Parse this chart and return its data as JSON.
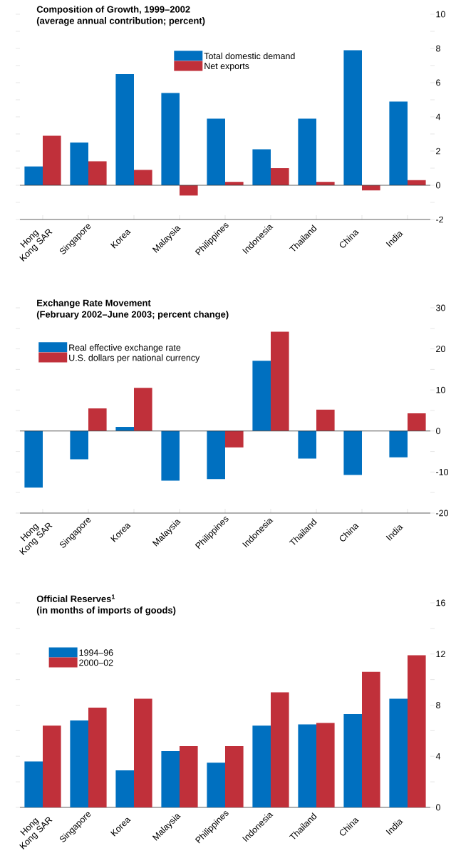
{
  "chart_data": [
    {
      "type": "bar",
      "title": "Composition of Growth, 1999–2002",
      "subtitle": "(average annual contribution; percent)",
      "categories": [
        "Hong Kong SAR",
        "Singapore",
        "Korea",
        "Malaysia",
        "Philippines",
        "Indonesia",
        "Thailand",
        "China",
        "India"
      ],
      "series": [
        {
          "name": "Total domestic demand",
          "color": "#0070c0",
          "values": [
            1.1,
            2.5,
            6.5,
            5.4,
            3.9,
            2.1,
            3.9,
            7.9,
            4.9
          ]
        },
        {
          "name": "Net exports",
          "color": "#c0303a",
          "values": [
            2.9,
            1.4,
            0.9,
            -0.6,
            0.2,
            1.0,
            0.2,
            -0.3,
            0.3
          ]
        }
      ],
      "ylim": [
        -2,
        10
      ],
      "yticks": [
        -2,
        {
          "value": -1,
          "label": null
        },
        0,
        {
          "value": 1,
          "label": null
        },
        2,
        {
          "value": 3,
          "label": null
        },
        4,
        {
          "value": 5,
          "label": null
        },
        6,
        {
          "value": 7,
          "label": null
        },
        8,
        {
          "value": 9,
          "label": null
        },
        10
      ],
      "legend": "top"
    },
    {
      "type": "bar",
      "title": "Exchange Rate Movement",
      "subtitle": "(February 2002–June 2003; percent change)",
      "categories": [
        "Hong Kong SAR",
        "Singapore",
        "Korea",
        "Malaysia",
        "Philippines",
        "Indonesia",
        "Thailand",
        "China",
        "India"
      ],
      "series": [
        {
          "name": "Real effective exchange rate",
          "color": "#0070c0",
          "values": [
            -13.8,
            -6.9,
            1.0,
            -12.1,
            -11.7,
            17.1,
            -6.7,
            -10.7,
            -6.4
          ]
        },
        {
          "name": "U.S. dollars per national currency",
          "color": "#c0303a",
          "values": [
            0,
            5.5,
            10.5,
            0,
            -4.0,
            24.2,
            5.2,
            0,
            4.3
          ]
        }
      ],
      "ylim": [
        -20,
        30
      ],
      "yticks": [
        -20,
        {
          "value": -15,
          "label": null
        },
        -10,
        {
          "value": -5,
          "label": null
        },
        0,
        {
          "value": 5,
          "label": null
        },
        10,
        {
          "value": 15,
          "label": null
        },
        20,
        {
          "value": 25,
          "label": null
        },
        30
      ],
      "legend": "top left"
    },
    {
      "type": "bar",
      "title": "Official Reserves$^{1}$",
      "subtitle": "(in months of imports of goods)",
      "categories": [
        "Hong Kong SAR",
        "Singapore",
        "Korea",
        "Malaysia",
        "Philippines",
        "Indonesia",
        "Thailand",
        "China",
        "India"
      ],
      "series": [
        {
          "name": "1994–96",
          "color": "#0070c0",
          "values": [
            3.6,
            6.8,
            2.9,
            4.4,
            3.5,
            6.4,
            6.5,
            7.3,
            8.5
          ]
        },
        {
          "name": "2000–02",
          "color": "#c0303a",
          "values": [
            6.4,
            7.8,
            8.5,
            4.8,
            4.8,
            9.0,
            6.6,
            10.6,
            11.9
          ]
        }
      ],
      "ylim": [
        0,
        16
      ],
      "yticks": [
        0,
        {
          "value": 2,
          "label": null
        },
        4,
        {
          "value": 6,
          "label": null
        },
        8,
        {
          "value": 10,
          "label": null
        },
        12,
        {
          "value": 14,
          "label": null
        },
        16
      ],
      "legend": "top left"
    }
  ]
}
